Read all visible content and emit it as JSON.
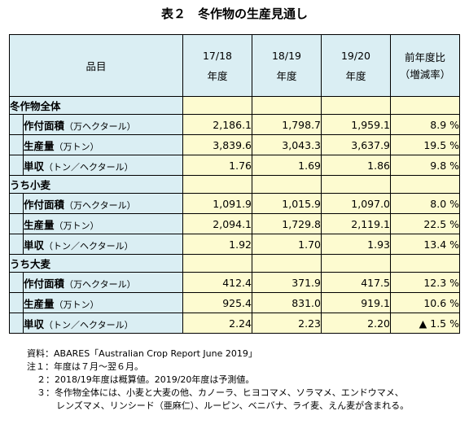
{
  "title": "表２　冬作物の生産見通し",
  "header": {
    "item_label": "品目",
    "years": [
      {
        "line1": "17/18",
        "line2": "年度"
      },
      {
        "line1": "18/19",
        "line2": "年度"
      },
      {
        "line1": "19/20",
        "line2": "年度"
      }
    ],
    "change_line1": "前年度比",
    "change_line2": "（増減率）"
  },
  "groups": [
    {
      "name": "冬作物全体",
      "rows": [
        {
          "metric": "作付面積",
          "unit": "（万ヘクタール）",
          "v1": "2,186.1",
          "v2": "1,798.7",
          "v3": "1,959.1",
          "change": "8.9 %"
        },
        {
          "metric": "生産量",
          "unit": "（万トン）",
          "v1": "3,839.6",
          "v2": "3,043.3",
          "v3": "3,637.9",
          "change": "19.5 %"
        },
        {
          "metric": "単収",
          "unit": "（トン／ヘクタール）",
          "v1": "1.76",
          "v2": "1.69",
          "v3": "1.86",
          "change": "9.8 %"
        }
      ]
    },
    {
      "name": "うち小麦",
      "rows": [
        {
          "metric": "作付面積",
          "unit": "（万ヘクタール）",
          "v1": "1,091.9",
          "v2": "1,015.9",
          "v3": "1,097.0",
          "change": "8.0 %"
        },
        {
          "metric": "生産量",
          "unit": "（万トン）",
          "v1": "2,094.1",
          "v2": "1,729.8",
          "v3": "2,119.1",
          "change": "22.5 %"
        },
        {
          "metric": "単収",
          "unit": "（トン／ヘクタール）",
          "v1": "1.92",
          "v2": "1.70",
          "v3": "1.93",
          "change": "13.4 %"
        }
      ]
    },
    {
      "name": "うち大麦",
      "rows": [
        {
          "metric": "作付面積",
          "unit": "（万ヘクタール）",
          "v1": "412.4",
          "v2": "371.9",
          "v3": "417.5",
          "change": "12.3 %"
        },
        {
          "metric": "生産量",
          "unit": "（万トン）",
          "v1": "925.4",
          "v2": "831.0",
          "v3": "919.1",
          "change": "10.6 %"
        },
        {
          "metric": "単収",
          "unit": "（トン／ヘクタール）",
          "v1": "2.24",
          "v2": "2.23",
          "v3": "2.20",
          "change": "▲ 1.5 %"
        }
      ]
    }
  ],
  "notes": {
    "source": "資料：ABARES「Australian Crop Report June 2019」",
    "n1": "注１：年度は７月～翌６月。",
    "n2": "２：2018/19年度は概算値。2019/20年度は予測値。",
    "n3a": "３：冬作物全体には、小麦と大麦の他、カノーラ、ヒヨコマメ、ソラマメ、エンドウマメ、",
    "n3b": "レンズマメ、リンシード（亜麻仁）、ルーピン、ベニバナ、ライ麦、えん麦が含まれる。"
  }
}
